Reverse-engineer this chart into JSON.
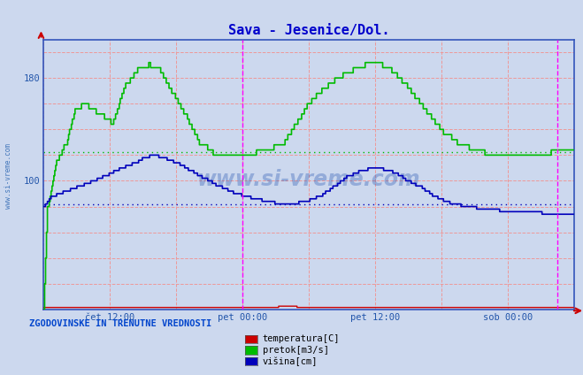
{
  "title": "Sava - Jesenice/Dol.",
  "title_color": "#0000cc",
  "bg_color": "#ccd8ee",
  "plot_bg_color": "#ccd8ee",
  "ylim": [
    0,
    210
  ],
  "xlim": [
    0,
    576
  ],
  "xtick_positions": [
    72,
    216,
    360,
    504
  ],
  "xtick_labels": [
    "čet 12:00",
    "pet 00:00",
    "pet 12:00",
    "sob 00:00"
  ],
  "ytick_positions": [
    100,
    180
  ],
  "ytick_labels": [
    "100",
    "180"
  ],
  "vline1": 216,
  "vline2": 558,
  "vline_color": "#ff00ff",
  "grid_hvals": [
    20,
    40,
    60,
    80,
    100,
    120,
    140,
    160,
    180,
    200
  ],
  "grid_xvals": [
    0,
    72,
    144,
    216,
    288,
    360,
    432,
    504,
    576
  ],
  "grid_color": "#ee9999",
  "avg_green": 122,
  "avg_blue": 82,
  "avg_green_color": "#00bb00",
  "avg_blue_color": "#0000bb",
  "line_red_color": "#cc0000",
  "line_green_color": "#00bb00",
  "line_blue_color": "#0000bb",
  "legend_title": "ZGODOVINSKE IN TRENUTNE VREDNOSTI",
  "legend_labels": [
    "temperatura[C]",
    "pretok[m3/s]",
    "višina[cm]"
  ],
  "legend_colors": [
    "#cc0000",
    "#00bb00",
    "#0000bb"
  ],
  "watermark": "www.si-vreme.com",
  "side_label": "www.si-vreme.com"
}
